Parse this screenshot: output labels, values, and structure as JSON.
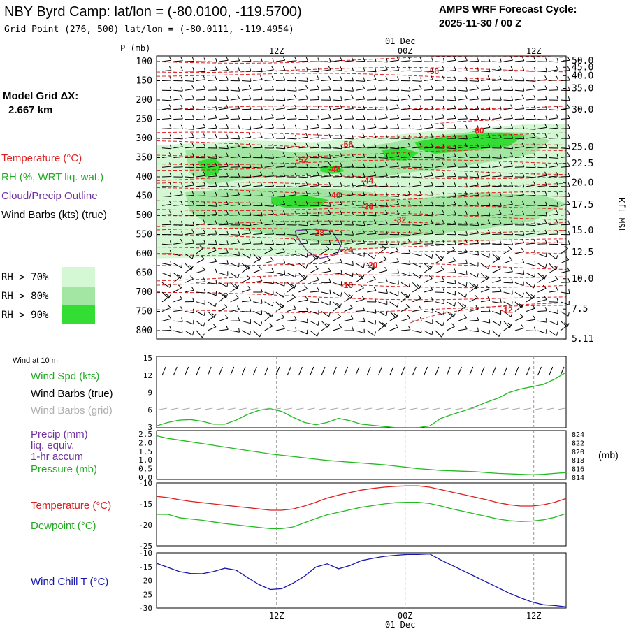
{
  "header": {
    "station_title": "NBY Byrd Camp:  lat/lon = (-80.0100, -119.5700)",
    "grid_point": "Grid Point (276, 500) lat/lon = (-80.0111, -119.4954)",
    "forecast_label": "AMPS WRF Forecast Cycle:",
    "forecast_cycle": "2025-11-30 / 00  Z",
    "model_grid_label": "Model Grid ΔX:",
    "model_grid_value": "2.667 km"
  },
  "time_axis": {
    "date_label": "01 Dec",
    "ticks": [
      {
        "label": "12Z",
        "frac": 0.293
      },
      {
        "label": "00Z",
        "frac": 0.607
      },
      {
        "label": "12Z",
        "frac": 0.921
      }
    ]
  },
  "legend": {
    "temperature": "Temperature (°C)",
    "rh": "RH (%, WRT liq. wat.)",
    "cloud": "Cloud/Precip Outline",
    "wind": "Wind Barbs (kts) (true)",
    "rh70": "RH > 70%",
    "rh80": "RH > 80%",
    "rh90": "RH > 90%",
    "colors": {
      "temperature": "#e02020",
      "rh": "#22aa22",
      "cloud": "#7030a0",
      "rh70": "#d4f7d4",
      "rh80": "#a3e6a3",
      "rh90": "#33dd33"
    }
  },
  "chart_data": [
    {
      "id": "cross-section",
      "type": "heatmap",
      "ylabel_left": "P (mb)",
      "ylabel_right": "Kft MSL",
      "pressure_ticks": [
        100,
        150,
        200,
        250,
        300,
        350,
        400,
        450,
        500,
        550,
        600,
        650,
        700,
        750,
        800
      ],
      "height_ticks": [
        "50.0",
        "45.0",
        "40.0",
        "35.0",
        "30.0",
        "25.0",
        "22.5",
        "20.0",
        "17.5",
        "15.0",
        "12.5",
        "10.0",
        "7.5",
        "5.11"
      ],
      "height_at_pressure": [
        98,
        115,
        137,
        170,
        225,
        323,
        365,
        415,
        473,
        540,
        596,
        665,
        744,
        822
      ],
      "temperature_labels": [
        {
          "value": "-56",
          "t": 0.66,
          "p": 125
        },
        {
          "value": "-60",
          "t": 0.77,
          "p": 280
        },
        {
          "value": "-56",
          "t": 0.45,
          "p": 315
        },
        {
          "value": "-52",
          "t": 0.34,
          "p": 355
        },
        {
          "value": "-48",
          "t": 0.42,
          "p": 380
        },
        {
          "value": "-44",
          "t": 0.5,
          "p": 410
        },
        {
          "value": "-40",
          "t": 0.42,
          "p": 448
        },
        {
          "value": "-36",
          "t": 0.5,
          "p": 477
        },
        {
          "value": "-32",
          "t": 0.58,
          "p": 512
        },
        {
          "value": "-28",
          "t": 0.38,
          "p": 545
        },
        {
          "value": "-24",
          "t": 0.45,
          "p": 590
        },
        {
          "value": "-20",
          "t": 0.51,
          "p": 630
        },
        {
          "value": "-16",
          "t": 0.45,
          "p": 682
        },
        {
          "value": "-12",
          "t": 0.84,
          "p": 746
        }
      ]
    },
    {
      "id": "wind-10m",
      "type": "line",
      "title": "Wind at 10 m",
      "labels": {
        "speed": "Wind Spd (kts)",
        "barbs_true": "Wind Barbs (true)",
        "barbs_grid": "Wind Barbs (grid)"
      },
      "yticks": [
        "15",
        "12",
        "9",
        "6",
        "3"
      ],
      "ylim": [
        3,
        15
      ],
      "series": [
        {
          "name": "Wind Spd (kts)",
          "color": "#22bb22",
          "values": [
            3.2,
            3.8,
            4.2,
            4.3,
            4.0,
            3.5,
            3.5,
            4.2,
            5.2,
            5.9,
            6.2,
            5.7,
            4.7,
            3.8,
            3.4,
            3.8,
            4.5,
            4.1,
            3.5,
            3.3,
            3.1,
            2.9,
            2.9,
            2.9,
            3.2,
            4.5,
            5.2,
            5.8,
            6.5,
            7.3,
            8.0,
            9.0,
            9.6,
            10.0,
            10.4,
            11.3,
            12.5
          ]
        }
      ]
    },
    {
      "id": "precip-pressure",
      "type": "line",
      "labels": {
        "precip": "Precip (mm)",
        "liq": "liq. equiv.",
        "accum": "1-hr accum",
        "pressure": "Pressure (mb)"
      },
      "yticks_left": [
        "2.5",
        "2.0",
        "1.5",
        "1.0",
        "0.5",
        "0.0"
      ],
      "yticks_right": [
        "824",
        "822",
        "820",
        "818",
        "816",
        "814"
      ],
      "unit_right": "(mb)",
      "ylim_right": [
        814,
        824
      ],
      "series": [
        {
          "name": "Pressure (mb)",
          "color": "#22bb22",
          "values": [
            823.6,
            823.0,
            822.6,
            822.2,
            821.8,
            821.4,
            821.0,
            820.6,
            820.2,
            819.8,
            819.4,
            819.1,
            818.8,
            818.5,
            818.2,
            817.9,
            817.7,
            817.5,
            817.3,
            817.1,
            816.9,
            816.6,
            816.3,
            816.0,
            815.8,
            815.6,
            815.5,
            815.4,
            815.3,
            815.1,
            814.9,
            814.8,
            814.7,
            814.6,
            814.7,
            814.9,
            815.1
          ]
        }
      ]
    },
    {
      "id": "temp-dewpoint",
      "type": "line",
      "labels": {
        "temperature": "Temperature (°C)",
        "dewpoint": "Dewpoint (°C)"
      },
      "yticks": [
        "-10",
        "-15",
        "-20",
        "-25"
      ],
      "ylim": [
        -25,
        -10
      ],
      "series": [
        {
          "name": "Temperature (°C)",
          "color": "#dd2020",
          "values": [
            -13.2,
            -13.5,
            -14.0,
            -14.4,
            -14.7,
            -15.0,
            -15.3,
            -15.6,
            -15.9,
            -16.2,
            -16.5,
            -16.5,
            -16.2,
            -15.5,
            -14.6,
            -13.6,
            -12.9,
            -12.3,
            -11.7,
            -11.3,
            -11.0,
            -10.8,
            -10.7,
            -10.7,
            -11.0,
            -11.6,
            -12.2,
            -12.8,
            -13.4,
            -14.0,
            -14.7,
            -15.2,
            -15.5,
            -15.5,
            -15.2,
            -14.6,
            -13.7
          ]
        },
        {
          "name": "Dewpoint (°C)",
          "color": "#22bb22",
          "values": [
            -17.5,
            -17.5,
            -18.3,
            -18.6,
            -18.9,
            -19.3,
            -19.7,
            -20.0,
            -20.3,
            -20.6,
            -20.9,
            -20.9,
            -20.5,
            -19.5,
            -18.5,
            -17.6,
            -17.0,
            -16.4,
            -15.8,
            -15.4,
            -15.0,
            -14.7,
            -14.6,
            -14.6,
            -14.9,
            -15.5,
            -16.2,
            -16.8,
            -17.4,
            -18.0,
            -18.6,
            -19.0,
            -19.2,
            -19.1,
            -18.8,
            -18.2,
            -17.3
          ]
        }
      ]
    },
    {
      "id": "wind-chill",
      "type": "line",
      "labels": {
        "windchill": "Wind Chill T (°C)"
      },
      "yticks": [
        "-10",
        "-15",
        "-20",
        "-25",
        "-30"
      ],
      "ylim": [
        -30,
        -10
      ],
      "series": [
        {
          "name": "Wind Chill T (°C)",
          "color": "#1515aa",
          "values": [
            -13.8,
            -15.3,
            -16.8,
            -17.5,
            -17.6,
            -16.8,
            -15.6,
            -16.3,
            -19.0,
            -21.5,
            -23.3,
            -23.0,
            -21.0,
            -18.5,
            -15.2,
            -14.0,
            -15.8,
            -14.6,
            -12.8,
            -12.0,
            -11.3,
            -10.9,
            -10.6,
            -10.6,
            -10.4,
            -12.6,
            -14.6,
            -16.6,
            -18.6,
            -20.6,
            -22.6,
            -24.6,
            -26.3,
            -27.8,
            -28.8,
            -29.1,
            -29.6
          ]
        }
      ]
    }
  ]
}
